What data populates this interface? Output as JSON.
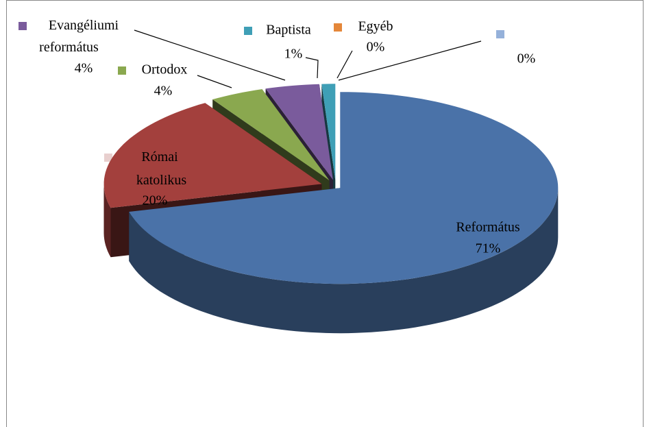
{
  "chart_data": {
    "type": "pie",
    "categories": [
      "Református",
      "Római katolikus",
      "Ortodox",
      "Evangéliumi református",
      "Baptista",
      "Egyéb",
      null
    ],
    "values": [
      71,
      20,
      4,
      4,
      1,
      0,
      0
    ],
    "value_labels": [
      "71%",
      "20%",
      "4%",
      "4%",
      "1%",
      "0%",
      "0%"
    ],
    "colors": [
      "#4a72a8",
      "#a3403d",
      "#8aa84f",
      "#7a5b9c",
      "#3f9fb6",
      "#e4873a",
      "#95b1da"
    ]
  }
}
